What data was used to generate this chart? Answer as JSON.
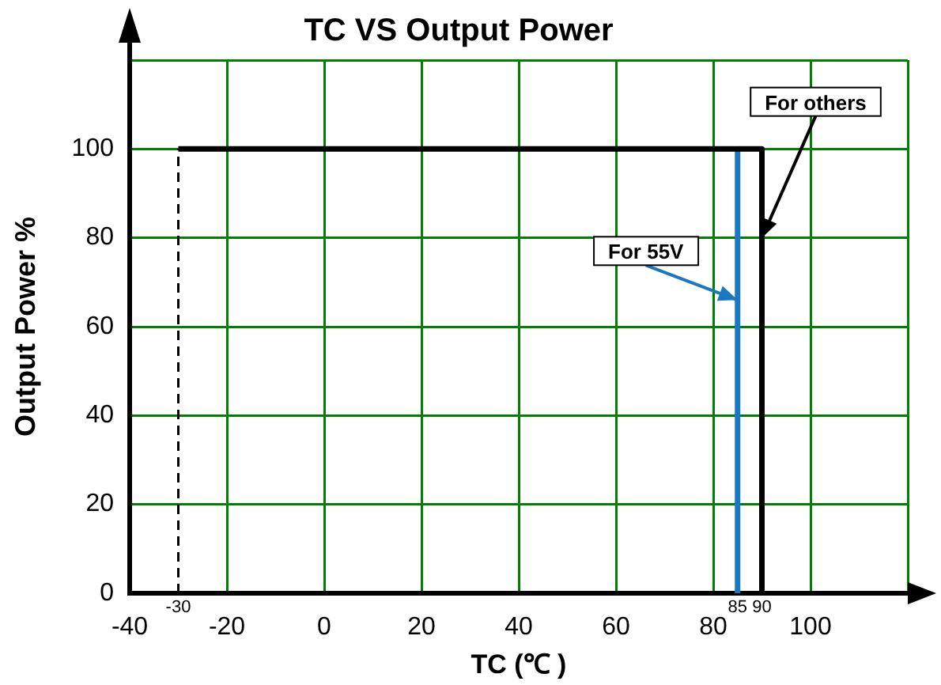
{
  "chart_data": {
    "type": "line",
    "title": "TC VS Output Power",
    "xlabel": "TC (℃ )",
    "ylabel": "Output Power %",
    "xlim": [
      -40,
      120
    ],
    "xticks": [
      -40,
      -20,
      0,
      20,
      40,
      60,
      80,
      100,
      {
        "value": 120,
        "label": null
      }
    ],
    "ylim": [
      0,
      120
    ],
    "yticks": [
      0,
      20,
      40,
      60,
      80,
      100,
      {
        "value": 120,
        "label": null
      }
    ],
    "grid": true,
    "legend": false,
    "marker": "none",
    "series": [
      {
        "color": "#000000",
        "x": [
          -30,
          -30
        ],
        "values": [
          0,
          100
        ],
        "line_style": "dashed"
      },
      {
        "color": "#000000",
        "x": [
          -30,
          90,
          90
        ],
        "values": [
          100,
          100,
          0
        ],
        "line_style": "solid"
      },
      {
        "color": "#1a78c2",
        "x": [
          85,
          85
        ],
        "values": [
          0,
          100
        ],
        "line_style": "solid"
      }
    ],
    "annotations": [
      {
        "text": "For others",
        "x": 90,
        "y": 80
      },
      {
        "text": "For 55V",
        "x": 85,
        "y": 66
      },
      {
        "text": "-30",
        "x": -30,
        "y": 0
      },
      {
        "text": "85",
        "x": 85,
        "y": 0
      },
      {
        "text": "90",
        "x": 90,
        "y": 0
      }
    ]
  }
}
